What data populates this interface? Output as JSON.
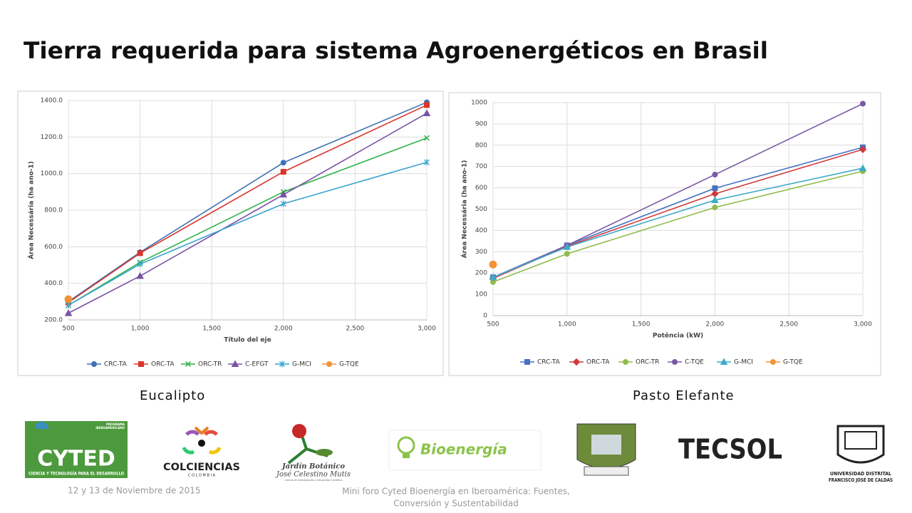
{
  "title": "Tierra requerida para sistema Agroenergéticos en Brasil",
  "captions": [
    "Eucalipto",
    "Pasto Elefante"
  ],
  "footer": {
    "date": "12 y 13 de Noviembre de 2015",
    "event": [
      "Mini foro Cyted Bioenergía en Iberoamérica: Fuentes,",
      "Conversión y Sustentabilidad"
    ]
  },
  "logos": {
    "cyted": [
      "PROGRAMA",
      "IBEROAMERICANO",
      "CYTED",
      "CIENCIA Y TECNOLOGÍA PARA EL DESARROLLO"
    ],
    "colciencias": [
      "COLCIENCIAS",
      "C O L O M B I A"
    ],
    "jardin": [
      "Jardín Botánico",
      "José Celestino Mutis",
      "Centro de Investigación y Desarrollo Científico"
    ],
    "bioenergia": "Bioenergía",
    "tecsol": "TECSOL",
    "udistrital": [
      "UNIVERSIDAD DISTRITAL",
      "FRANCISCO JOSÉ DE CALDAS"
    ]
  },
  "chart_data": [
    {
      "type": "line",
      "xlabel": "Título del eje",
      "ylabel": "Área Necessária (ha ano-1)",
      "x": [
        500,
        1000,
        2000,
        3000
      ],
      "xlim": [
        500,
        3000
      ],
      "xticks": [
        500,
        {
          "value": 1000,
          "label": "1,000"
        },
        {
          "value": 1500,
          "label": "1,500"
        },
        {
          "value": 2000,
          "label": "2,000"
        },
        {
          "value": 2500,
          "label": "2,500"
        },
        {
          "value": 3000,
          "label": "3,000"
        }
      ],
      "ylim": [
        200,
        1400
      ],
      "yticks": [
        {
          "value": 200,
          "label": "200.0"
        },
        {
          "value": 400,
          "label": "400.0"
        },
        {
          "value": 600,
          "label": "600.0"
        },
        {
          "value": 800,
          "label": "800.0"
        },
        {
          "value": 1000,
          "label": "1000.0"
        },
        {
          "value": 1200,
          "label": "1200.0"
        },
        {
          "value": 1400,
          "label": "1400.0"
        }
      ],
      "grid": true,
      "legend": "bottom",
      "series": [
        {
          "name": "CRC-TA",
          "color": "#3f72b5",
          "marker": "circle",
          "values": [
            300,
            570,
            1060,
            1390
          ]
        },
        {
          "name": "ORC-TA",
          "color": "#d9342b",
          "marker": "square",
          "values": [
            295,
            565,
            1010,
            1375
          ]
        },
        {
          "name": "ORC-TR",
          "color": "#2eb24a",
          "marker": "x",
          "values": [
            280,
            515,
            900,
            1195
          ]
        },
        {
          "name": "C-EFGT",
          "color": "#7a52a5",
          "marker": "triangle",
          "values": [
            237,
            440,
            885,
            1330
          ]
        },
        {
          "name": "G-MCI",
          "color": "#3aa3cf",
          "marker": "star",
          "values": [
            280,
            505,
            835,
            1062
          ]
        },
        {
          "name": "G-TQE",
          "color": "#f4923a",
          "marker": "circle",
          "values": [
            313,
            null,
            null,
            null
          ]
        }
      ]
    },
    {
      "type": "line",
      "xlabel": "Potência (kW)",
      "ylabel": "Área Necessária (ha ano-1)",
      "x": [
        500,
        1000,
        2000,
        3000
      ],
      "xlim": [
        500,
        3000
      ],
      "xticks": [
        500,
        {
          "value": 1000,
          "label": "1,000"
        },
        {
          "value": 1500,
          "label": "1,500"
        },
        {
          "value": 2000,
          "label": "2,000"
        },
        {
          "value": 2500,
          "label": "2,500"
        },
        {
          "value": 3000,
          "label": "3,000"
        }
      ],
      "ylim": [
        0,
        1000
      ],
      "yticks": [
        0,
        100,
        200,
        300,
        400,
        500,
        600,
        700,
        800,
        900,
        1000
      ],
      "grid": true,
      "legend": "bottom",
      "series": [
        {
          "name": "CRC-TA",
          "color": "#4472c4",
          "marker": "square",
          "values": [
            180,
            330,
            598,
            790
          ]
        },
        {
          "name": "ORC-TA",
          "color": "#d0393b",
          "marker": "diamond",
          "values": [
            175,
            325,
            572,
            780
          ]
        },
        {
          "name": "ORC-TR",
          "color": "#8fbc4a",
          "marker": "circle",
          "values": [
            158,
            290,
            508,
            678
          ]
        },
        {
          "name": "C-TQE",
          "color": "#7b59a6",
          "marker": "circle",
          "values": [
            178,
            330,
            662,
            995
          ]
        },
        {
          "name": "G-MCI",
          "color": "#3eabc9",
          "marker": "triangle",
          "values": [
            180,
            322,
            542,
            692
          ]
        },
        {
          "name": "G-TQE",
          "color": "#f4923a",
          "marker": "circle",
          "values": [
            240,
            null,
            null,
            null
          ]
        }
      ]
    }
  ]
}
